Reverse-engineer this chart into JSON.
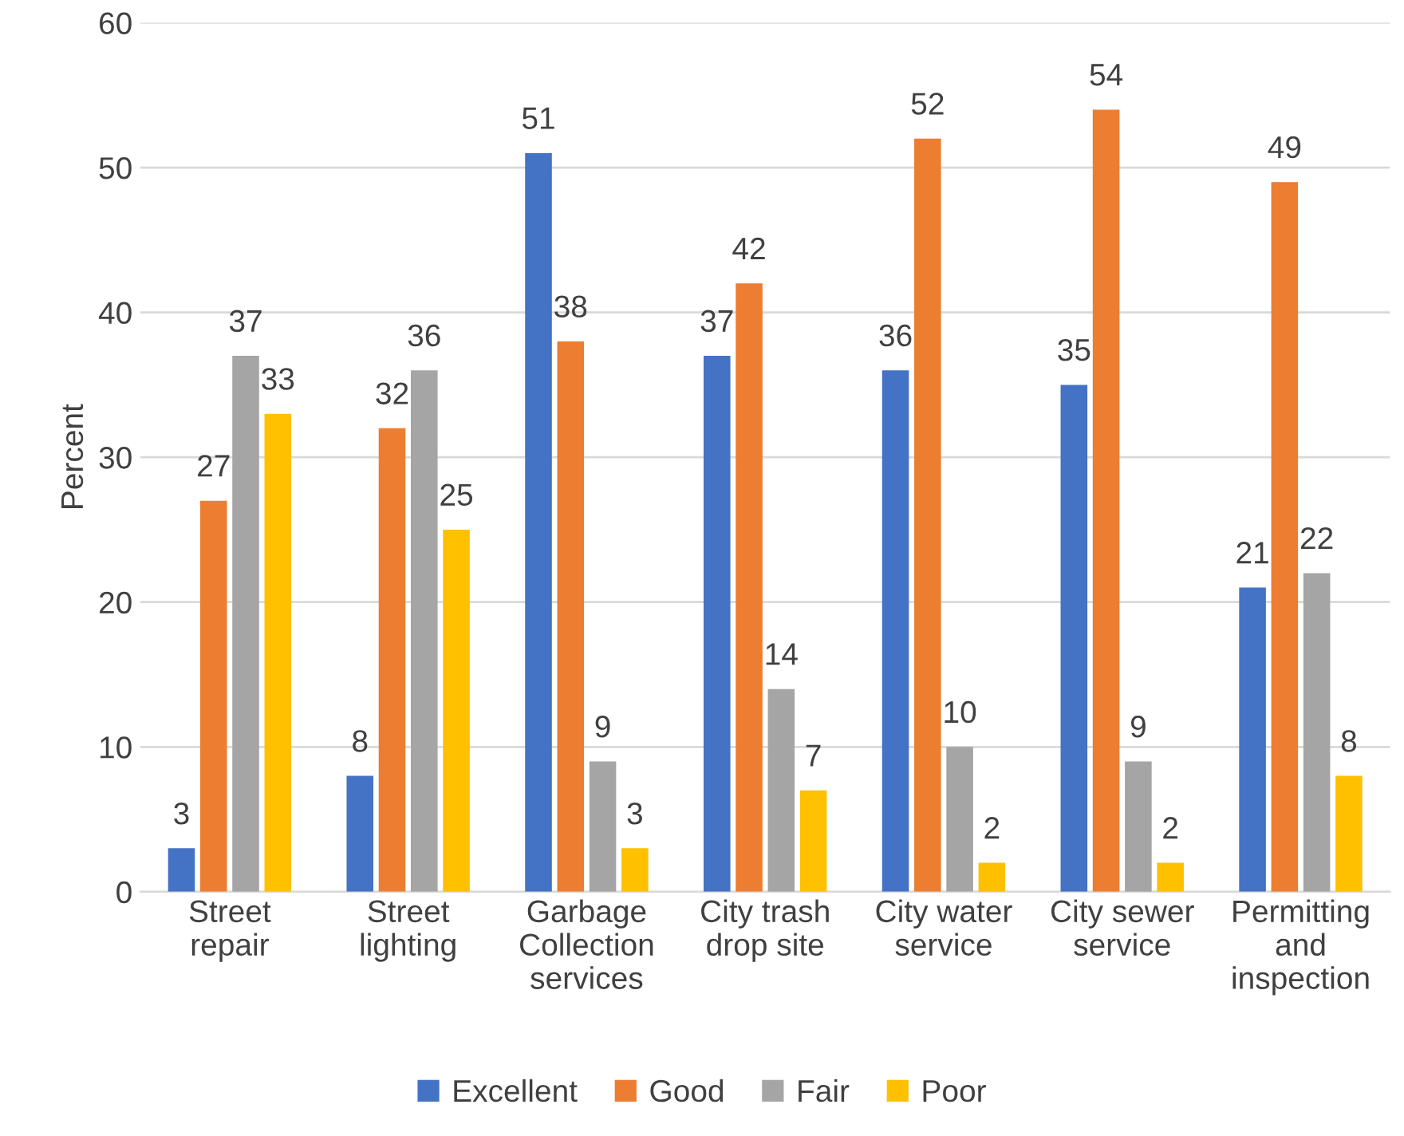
{
  "chart_data": {
    "type": "bar",
    "ylabel": "Percent",
    "categories": [
      "Street\nrepair",
      "Street\nlighting",
      "Garbage\nCollection\nservices",
      "City trash\ndrop site",
      "City water\nservice",
      "City sewer\nservice",
      "Permitting\nand\ninspection"
    ],
    "series": [
      {
        "name": "Excellent",
        "color": "#4472c4",
        "values": [
          3,
          8,
          51,
          37,
          36,
          35,
          21
        ]
      },
      {
        "name": "Good",
        "color": "#ed7d31",
        "values": [
          27,
          32,
          38,
          42,
          52,
          54,
          49
        ]
      },
      {
        "name": "Fair",
        "color": "#a5a5a5",
        "values": [
          37,
          36,
          9,
          14,
          10,
          9,
          22
        ]
      },
      {
        "name": "Poor",
        "color": "#ffc000",
        "values": [
          33,
          25,
          3,
          7,
          2,
          2,
          8
        ]
      }
    ],
    "ylim": [
      0,
      60
    ],
    "yticks": [
      0,
      10,
      20,
      30,
      40,
      50,
      60
    ],
    "grid": "y",
    "legend": "bottom",
    "data_labels": true
  }
}
